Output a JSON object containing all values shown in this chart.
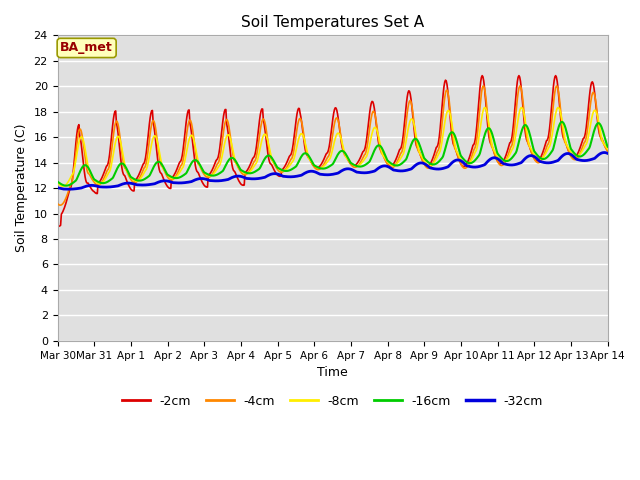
{
  "title": "Soil Temperatures Set A",
  "xlabel": "Time",
  "ylabel": "Soil Temperature (C)",
  "annotation": "BA_met",
  "ylim": [
    0,
    24
  ],
  "yticks": [
    0,
    2,
    4,
    6,
    8,
    10,
    12,
    14,
    16,
    18,
    20,
    22,
    24
  ],
  "xtick_labels": [
    "Mar 30",
    "Mar 31",
    "Apr 1",
    "Apr 2",
    "Apr 3",
    "Apr 4",
    "Apr 5",
    "Apr 6",
    "Apr 7",
    "Apr 8",
    "Apr 9",
    "Apr 10",
    "Apr 11",
    "Apr 12",
    "Apr 13",
    "Apr 14"
  ],
  "bg_color": "#e0e0e0",
  "fig_color": "#ffffff",
  "colors": {
    "-2cm": "#dd0000",
    "-4cm": "#ff8800",
    "-8cm": "#ffee00",
    "-16cm": "#00cc00",
    "-32cm": "#0000dd"
  },
  "line_widths": {
    "-2cm": 1.2,
    "-4cm": 1.2,
    "-8cm": 1.2,
    "-16cm": 1.5,
    "-32cm": 2.0
  },
  "n_days": 15,
  "pts_per_day": 48
}
